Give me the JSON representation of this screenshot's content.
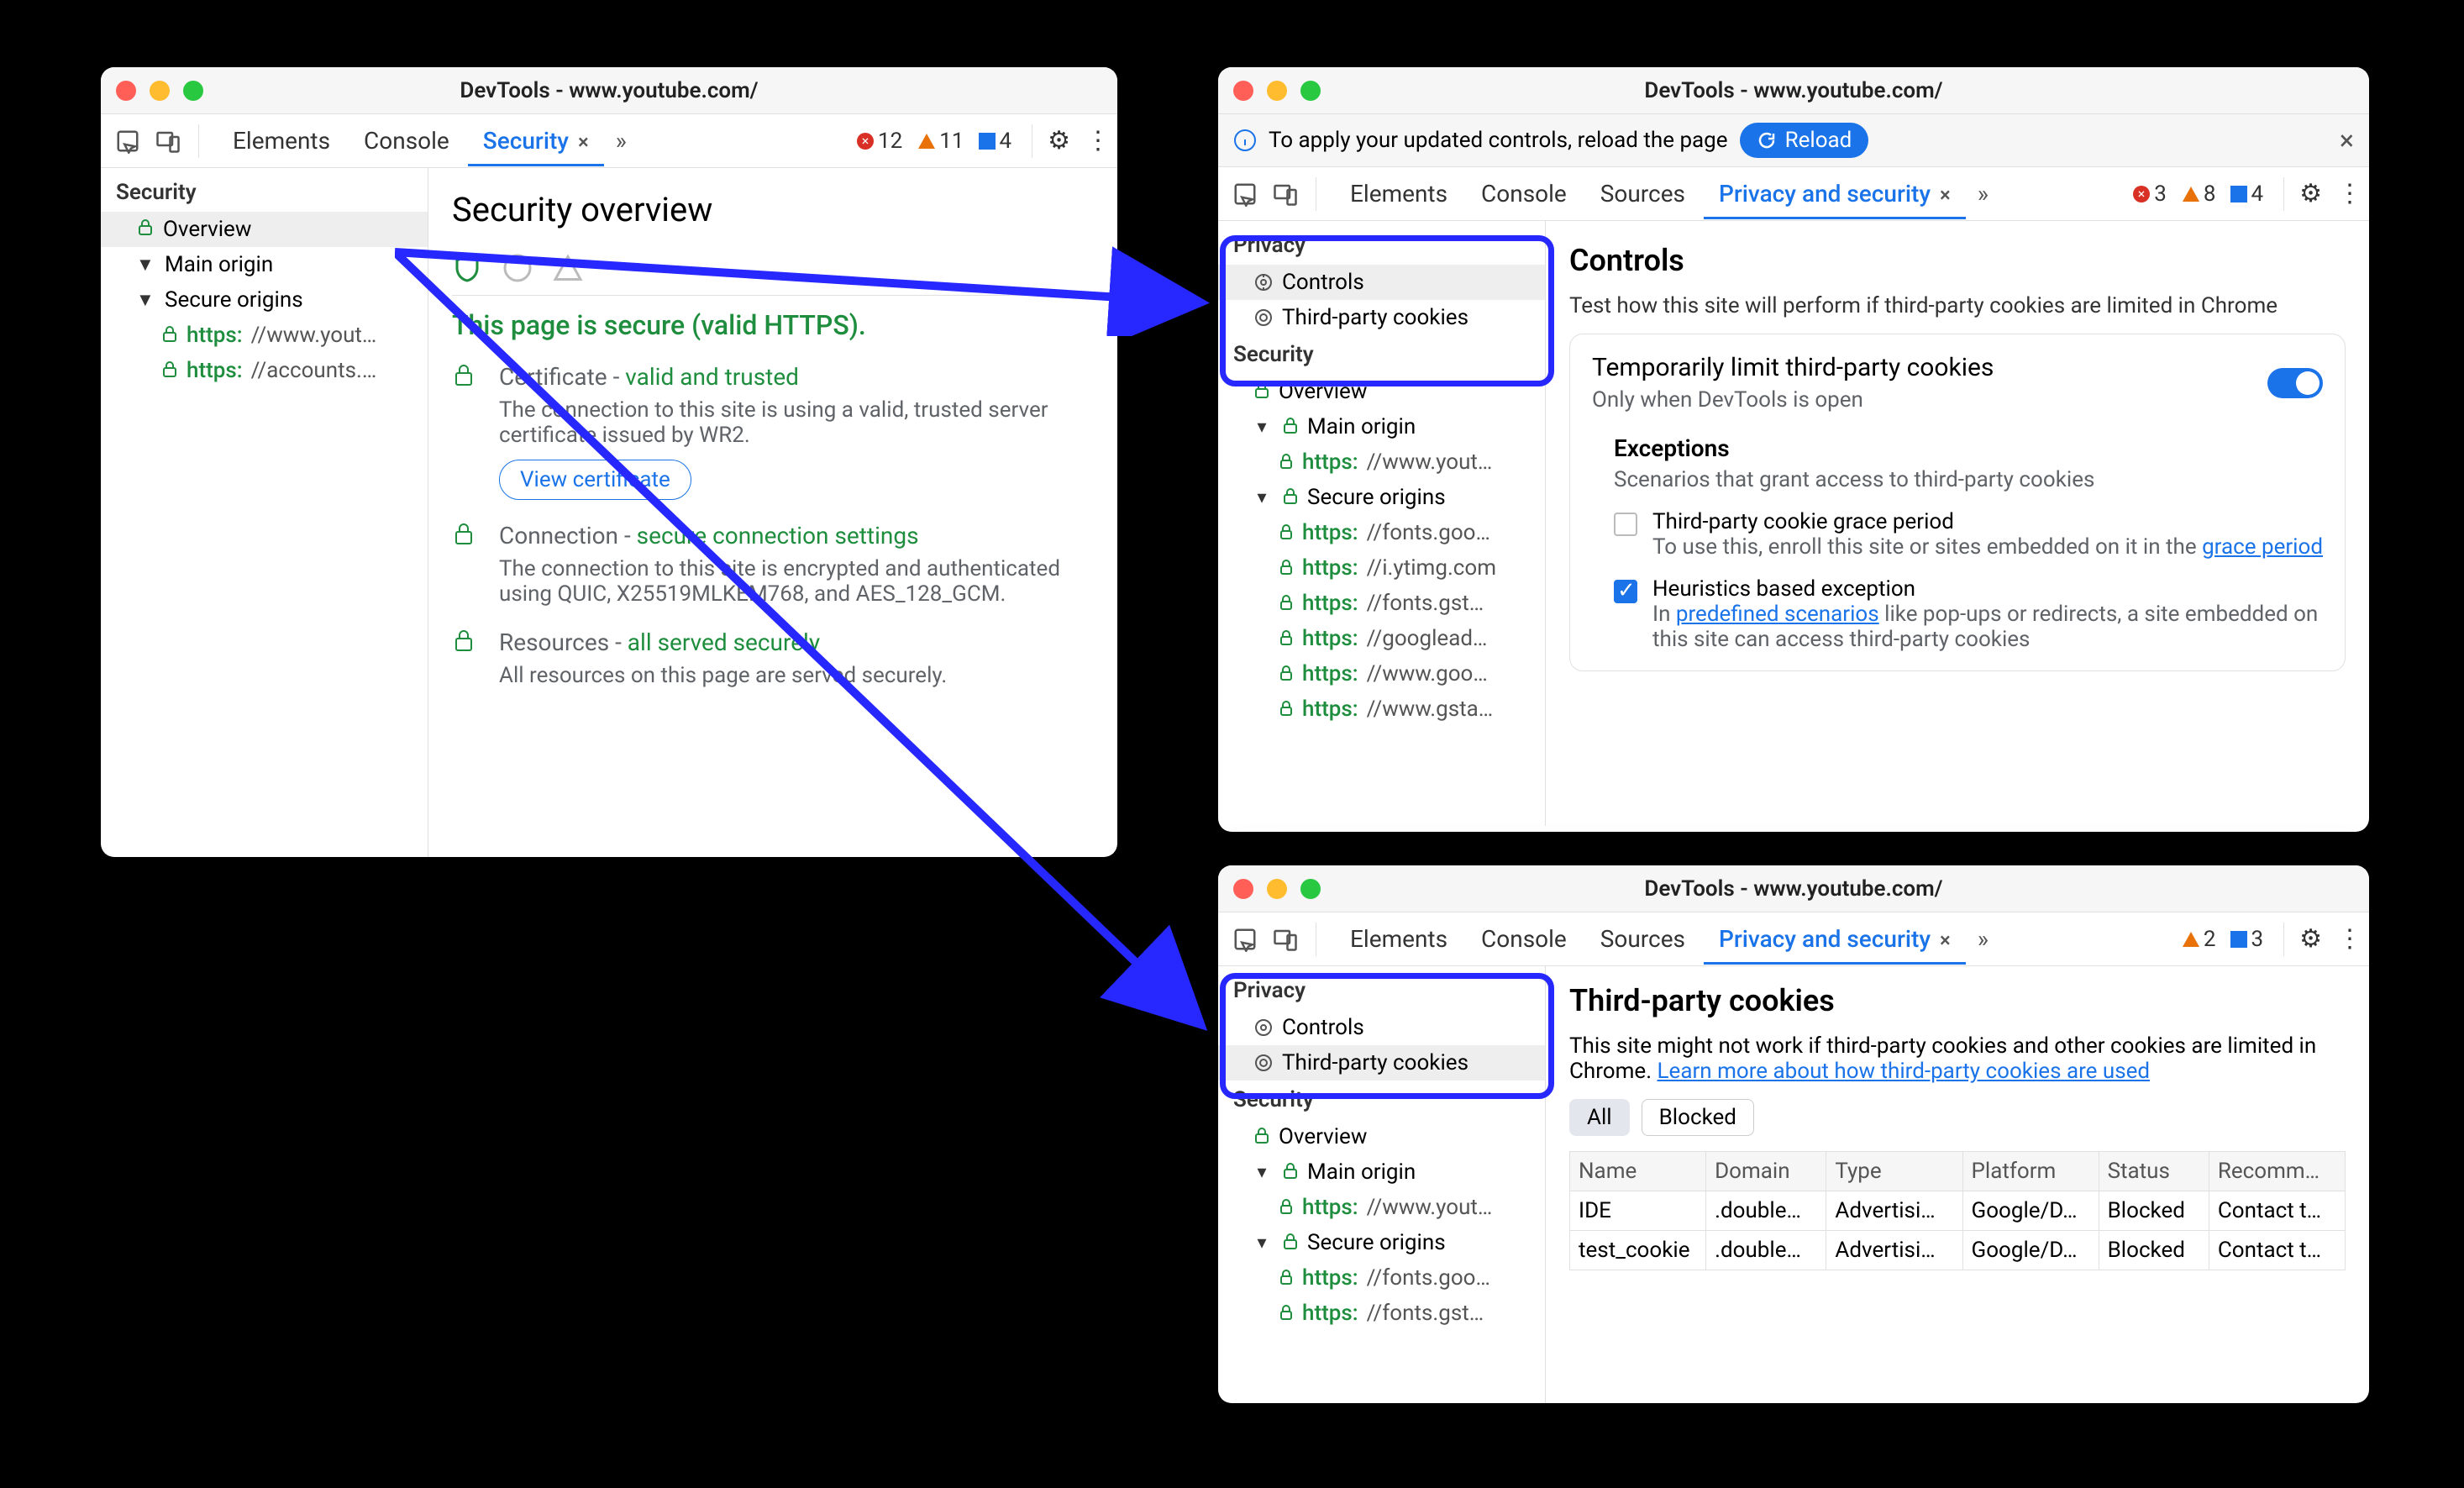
{
  "colors": {
    "accent": "#1a73e8",
    "secure": "#1e8e3e",
    "highlight": "#2727ff",
    "textMuted": "#5f6368"
  },
  "windows": {
    "w1": {
      "title_prefix": "DevTools - ",
      "title_url": "www.youtube.com/",
      "tabs": [
        "Elements",
        "Console",
        "Security"
      ],
      "active_tab": 2,
      "counters": {
        "errors": 12,
        "warnings": 11,
        "issues": 4
      },
      "sidebar": {
        "header": "Security",
        "overview": "Overview",
        "main_origin": "Main origin",
        "secure_origins": "Secure origins",
        "origins": [
          {
            "host": "https:",
            "rest": "//www.yout…"
          },
          {
            "host": "https:",
            "rest": "//accounts.…"
          }
        ]
      },
      "panel": {
        "title": "Security overview",
        "headline": "This page is secure (valid HTTPS).",
        "cert": {
          "label": "Certificate - ",
          "status": "valid and trusted",
          "body": "The connection to this site is using a valid, trusted server certificate issued by WR2.",
          "button": "View certificate"
        },
        "conn": {
          "label": "Connection - ",
          "status": "secure connection settings",
          "body": "The connection to this site is encrypted and authenticated using QUIC, X25519MLKEM768, and AES_128_GCM."
        },
        "res": {
          "label": "Resources - ",
          "status": "all served securely",
          "body": "All resources on this page are served securely."
        }
      }
    },
    "w2": {
      "title_prefix": "DevTools - ",
      "title_url": "www.youtube.com/",
      "notice": "To apply your updated controls, reload the page",
      "reload_label": "Reload",
      "tabs": [
        "Elements",
        "Console",
        "Sources",
        "Privacy and security"
      ],
      "active_tab": 3,
      "counters": {
        "errors": 3,
        "warnings": 8,
        "issues": 4
      },
      "sidebar": {
        "privacy_header": "Privacy",
        "controls": "Controls",
        "third_party": "Third-party cookies",
        "security_header": "Security",
        "overview": "Overview",
        "main_origin": "Main origin",
        "main_origin_items": [
          {
            "host": "https:",
            "rest": "//www.yout…"
          }
        ],
        "secure_origins": "Secure origins",
        "secure_items": [
          {
            "host": "https:",
            "rest": "//fonts.goo…"
          },
          {
            "host": "https:",
            "rest": "//i.ytimg.com"
          },
          {
            "host": "https:",
            "rest": "//fonts.gst…"
          },
          {
            "host": "https:",
            "rest": "//googlead…"
          },
          {
            "host": "https:",
            "rest": "//www.goo…"
          },
          {
            "host": "https:",
            "rest": "//www.gsta…"
          }
        ]
      },
      "panel": {
        "title": "Controls",
        "desc": "Test how this site will perform if third-party cookies are limited in Chrome",
        "card1": {
          "title": "Temporarily limit third-party cookies",
          "sub": "Only when DevTools is open",
          "toggle": true
        },
        "exceptions": {
          "heading": "Exceptions",
          "sub": "Scenarios that grant access to third-party cookies",
          "grace": {
            "title": "Third-party cookie grace period",
            "body_before": "To use this, enroll this site or sites embedded on it in the ",
            "link": "grace period",
            "checked": false
          },
          "heur": {
            "title": "Heuristics based exception",
            "body_before": "In ",
            "link": "predefined scenarios",
            "body_after": " like pop-ups or redirects, a site embedded on this site can access third-party cookies",
            "checked": true
          }
        }
      }
    },
    "w3": {
      "title_prefix": "DevTools - ",
      "title_url": "www.youtube.com/",
      "tabs": [
        "Elements",
        "Console",
        "Sources",
        "Privacy and security"
      ],
      "active_tab": 3,
      "counters": {
        "warnings": 2,
        "issues": 3
      },
      "sidebar": {
        "privacy_header": "Privacy",
        "controls": "Controls",
        "third_party": "Third-party cookies",
        "security_header": "Security",
        "overview": "Overview",
        "main_origin": "Main origin",
        "main_origin_items": [
          {
            "host": "https:",
            "rest": "//www.yout…"
          }
        ],
        "secure_origins": "Secure origins",
        "secure_items": [
          {
            "host": "https:",
            "rest": "//fonts.goo…"
          },
          {
            "host": "https:",
            "rest": "//fonts.gst…"
          }
        ]
      },
      "panel": {
        "title": "Third-party cookies",
        "desc_before": "This site might not work if third-party cookies and other cookies are limited in Chrome. ",
        "desc_link": "Learn more about how third-party cookies are used",
        "filters": [
          "All",
          "Blocked"
        ],
        "active_filter": 0,
        "columns": [
          "Name",
          "Domain",
          "Type",
          "Platform",
          "Status",
          "Recomm…"
        ],
        "rows": [
          [
            "IDE",
            ".double…",
            "Advertisi…",
            "Google/D…",
            "Blocked",
            "Contact t…"
          ],
          [
            "test_cookie",
            ".double…",
            "Advertisi…",
            "Google/D…",
            "Blocked",
            "Contact t…"
          ]
        ]
      }
    }
  }
}
